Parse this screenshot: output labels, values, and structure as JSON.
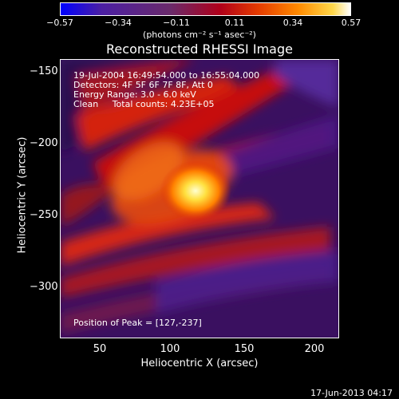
{
  "colorbar": {
    "ticks": [
      "−0.57",
      "−0.34",
      "−0.11",
      "0.11",
      "0.34",
      "0.57"
    ],
    "units": "(photons cm⁻² s⁻¹ asec⁻²)"
  },
  "title": "Reconstructed RHESSI Image",
  "info": {
    "time": "19-Jul-2004 16:49:54.000 to 16:55:04.000",
    "detectors": "Detectors: 4F 5F 6F 7F 8F, Att 0",
    "energy": "Energy Range: 3.0 - 6.0 keV",
    "clean": "Clean     Total counts: 4.23E+05"
  },
  "peak_text": "Position of Peak = [127,-237]",
  "axes": {
    "x_label": "Heliocentric X (arcsec)",
    "y_label": "Heliocentric Y (arcsec)",
    "x_ticks": [
      "50",
      "100",
      "150",
      "200"
    ],
    "y_ticks": [
      "−150",
      "−200",
      "−250",
      "−300"
    ]
  },
  "footer_date": "17-Jun-2013 04:17"
}
